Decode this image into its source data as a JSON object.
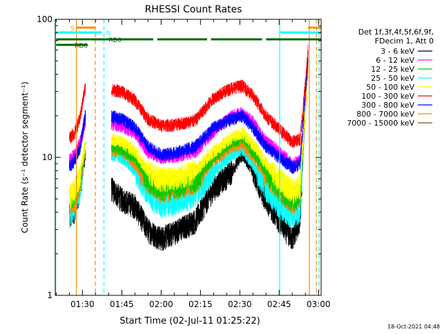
{
  "chart_data": {
    "type": "line",
    "title": "RHESSI Count Rates",
    "xlabel": "Start Time (02-Jul-11 01:25:22)",
    "ylabel": "Count Rate (s⁻¹ detector segment⁻¹)",
    "x_range_minutes": [
      -5.37,
      96.0
    ],
    "x_ticks": [
      {
        "minute": 5,
        "label": "01:30"
      },
      {
        "minute": 20,
        "label": "01:45"
      },
      {
        "minute": 35,
        "label": "02:00"
      },
      {
        "minute": 50,
        "label": "02:15"
      },
      {
        "minute": 65,
        "label": "02:30"
      },
      {
        "minute": 80,
        "label": "02:45"
      },
      {
        "minute": 95,
        "label": "03:00"
      }
    ],
    "y_scale": "log",
    "ylim": [
      1,
      100
    ],
    "y_tick_labels": [
      {
        "value": 1,
        "label": "1"
      },
      {
        "value": 10,
        "label": "10"
      },
      {
        "value": 100,
        "label": "100"
      }
    ],
    "legend": {
      "placement": "right",
      "header": [
        "Det 1f,3f,4f,5f,6f,9f,",
        "FDecim 1, Att 0"
      ]
    },
    "series": [
      {
        "name": "3 - 6 keV",
        "color": "#000000",
        "values": [
          [
            0,
            3.6
          ],
          [
            2,
            4.2
          ],
          [
            4,
            6.0
          ],
          [
            6,
            10.0
          ],
          [
            16,
            6.0
          ],
          [
            20,
            5.0
          ],
          [
            25,
            4.5
          ],
          [
            30,
            3.0
          ],
          [
            35,
            2.6
          ],
          [
            40,
            2.9
          ],
          [
            48,
            3.5
          ],
          [
            55,
            6.0
          ],
          [
            62,
            8.0
          ],
          [
            66,
            10.5
          ],
          [
            70,
            8.0
          ],
          [
            75,
            5.0
          ],
          [
            80,
            3.5
          ],
          [
            85,
            2.6
          ],
          [
            88,
            3.5
          ],
          [
            90,
            25.0
          ],
          [
            91,
            45.0
          ]
        ]
      },
      {
        "name": "6 - 12 keV",
        "color": "#ff00ff",
        "values": [
          [
            0,
            9.5
          ],
          [
            2,
            10.5
          ],
          [
            4,
            12.5
          ],
          [
            6,
            18.0
          ],
          [
            16,
            17.5
          ],
          [
            20,
            17.0
          ],
          [
            25,
            15.0
          ],
          [
            30,
            11.0
          ],
          [
            35,
            10.0
          ],
          [
            40,
            10.2
          ],
          [
            48,
            11.0
          ],
          [
            55,
            15.5
          ],
          [
            62,
            20.0
          ],
          [
            66,
            21.0
          ],
          [
            70,
            18.0
          ],
          [
            75,
            13.0
          ],
          [
            80,
            11.0
          ],
          [
            85,
            9.0
          ],
          [
            88,
            9.5
          ],
          [
            90,
            30.0
          ],
          [
            91,
            60.0
          ]
        ]
      },
      {
        "name": "12 - 25 keV",
        "color": "#00cc00",
        "values": [
          [
            0,
            5.0
          ],
          [
            2,
            5.5
          ],
          [
            4,
            7.0
          ],
          [
            6,
            12.0
          ],
          [
            16,
            12.0
          ],
          [
            20,
            11.5
          ],
          [
            25,
            10.0
          ],
          [
            30,
            7.0
          ],
          [
            35,
            6.0
          ],
          [
            40,
            6.2
          ],
          [
            48,
            7.0
          ],
          [
            55,
            10.0
          ],
          [
            62,
            13.0
          ],
          [
            66,
            14.0
          ],
          [
            70,
            11.0
          ],
          [
            75,
            8.0
          ],
          [
            80,
            6.0
          ],
          [
            85,
            5.0
          ],
          [
            88,
            5.5
          ],
          [
            90,
            25.0
          ],
          [
            91,
            50.0
          ]
        ]
      },
      {
        "name": "25 - 50 keV",
        "color": "#00ffff",
        "values": [
          [
            0,
            3.8
          ],
          [
            2,
            4.3
          ],
          [
            4,
            6.0
          ],
          [
            6,
            10.5
          ],
          [
            16,
            10.5
          ],
          [
            20,
            10.0
          ],
          [
            25,
            8.0
          ],
          [
            30,
            5.5
          ],
          [
            35,
            4.5
          ],
          [
            40,
            4.7
          ],
          [
            48,
            5.5
          ],
          [
            55,
            8.0
          ],
          [
            62,
            10.5
          ],
          [
            66,
            11.5
          ],
          [
            70,
            9.0
          ],
          [
            75,
            6.0
          ],
          [
            80,
            4.5
          ],
          [
            85,
            3.8
          ],
          [
            88,
            4.2
          ],
          [
            90,
            22.0
          ],
          [
            91,
            45.0
          ]
        ]
      },
      {
        "name": "50 - 100 keV",
        "color": "#ffff00",
        "values": [
          [
            0,
            5.2
          ],
          [
            2,
            5.8
          ],
          [
            4,
            7.5
          ],
          [
            6,
            12.5
          ],
          [
            16,
            13.5
          ],
          [
            20,
            13.0
          ],
          [
            25,
            11.0
          ],
          [
            30,
            8.0
          ],
          [
            35,
            7.0
          ],
          [
            40,
            7.1
          ],
          [
            48,
            8.0
          ],
          [
            55,
            11.0
          ],
          [
            62,
            14.0
          ],
          [
            66,
            15.0
          ],
          [
            70,
            12.5
          ],
          [
            75,
            9.0
          ],
          [
            80,
            7.0
          ],
          [
            85,
            5.8
          ],
          [
            88,
            6.2
          ],
          [
            90,
            24.0
          ],
          [
            91,
            48.0
          ]
        ]
      },
      {
        "name": "100 - 300 keV",
        "color": "#ff0000",
        "values": [
          [
            0,
            14.0
          ],
          [
            2,
            15.0
          ],
          [
            4,
            19.0
          ],
          [
            6,
            32.0
          ],
          [
            16,
            31.0
          ],
          [
            20,
            30.0
          ],
          [
            25,
            26.0
          ],
          [
            30,
            19.0
          ],
          [
            35,
            17.0
          ],
          [
            40,
            17.2
          ],
          [
            48,
            18.5
          ],
          [
            55,
            27.0
          ],
          [
            62,
            32.0
          ],
          [
            66,
            33.0
          ],
          [
            70,
            28.0
          ],
          [
            75,
            20.0
          ],
          [
            80,
            16.0
          ],
          [
            85,
            13.0
          ],
          [
            88,
            13.5
          ],
          [
            90,
            35.0
          ],
          [
            91,
            60.0
          ]
        ]
      },
      {
        "name": "300 - 800 keV",
        "color": "#0000ff",
        "values": [
          [
            0,
            8.5
          ],
          [
            2,
            9.5
          ],
          [
            4,
            11.5
          ],
          [
            6,
            20.0
          ],
          [
            16,
            20.0
          ],
          [
            20,
            19.0
          ],
          [
            25,
            16.5
          ],
          [
            30,
            12.0
          ],
          [
            35,
            10.5
          ],
          [
            40,
            10.8
          ],
          [
            48,
            12.0
          ],
          [
            55,
            16.5
          ],
          [
            62,
            19.0
          ],
          [
            66,
            20.0
          ],
          [
            70,
            16.5
          ],
          [
            75,
            12.0
          ],
          [
            80,
            10.0
          ],
          [
            85,
            8.5
          ],
          [
            88,
            9.0
          ],
          [
            90,
            30.0
          ],
          [
            91,
            50.0
          ]
        ]
      },
      {
        "name": "800 - 7000 keV",
        "color": "#ff8800",
        "values": [
          [
            0,
            4.5
          ],
          [
            2,
            5.0
          ],
          [
            4,
            6.5
          ],
          [
            6,
            11.0
          ],
          [
            16,
            11.5
          ],
          [
            20,
            11.0
          ],
          [
            25,
            9.0
          ],
          [
            30,
            6.8
          ],
          [
            35,
            5.8
          ],
          [
            40,
            6.0
          ],
          [
            48,
            6.8
          ],
          [
            55,
            9.5
          ],
          [
            62,
            12.0
          ],
          [
            66,
            12.5
          ],
          [
            70,
            10.0
          ],
          [
            75,
            7.5
          ],
          [
            80,
            6.0
          ],
          [
            85,
            4.8
          ],
          [
            88,
            5.2
          ],
          [
            90,
            22.0
          ],
          [
            91,
            42.0
          ]
        ]
      },
      {
        "name": "7000 - 15000 keV",
        "color": "#8b4513",
        "values": []
      }
    ],
    "gaps_minutes": [
      [
        6.2,
        16.0
      ]
    ],
    "events": {
      "night_bars": [
        {
          "label": "S",
          "color": "#ff8800",
          "segments": [
            [
              2.5,
              10.0
            ],
            [
              91.0,
              96.0
            ]
          ]
        },
        {
          "label": "N",
          "color": "#00ffff",
          "segments": [
            [
              -5.0,
              12.5
            ],
            [
              80.2,
              96.0
            ]
          ]
        },
        {
          "label": "RD0",
          "color": "#006600",
          "segments": [
            [
              -5.0,
              32.0
            ],
            [
              33.5,
              52.5
            ],
            [
              54.0,
              73.5
            ],
            [
              75.0,
              96.0
            ]
          ]
        },
        {
          "label": "RD6",
          "color": "#006600",
          "segments": [
            [
              -5.0,
              7.0
            ]
          ]
        }
      ],
      "vertical_lines": [
        {
          "minute": -5.2,
          "color": "#00ffff",
          "style": "solid"
        },
        {
          "minute": 2.7,
          "color": "#ff8800",
          "style": "solid"
        },
        {
          "minute": 9.9,
          "color": "#ff8800",
          "style": "dashed"
        },
        {
          "minute": 13.2,
          "color": "#00ffff",
          "style": "dashed"
        },
        {
          "minute": 80.2,
          "color": "#00ffff",
          "style": "solid"
        },
        {
          "minute": 91.5,
          "color": "#ff8800",
          "style": "solid"
        },
        {
          "minute": 94.2,
          "color": "#ff8800",
          "style": "dashed"
        },
        {
          "minute": 95.2,
          "color": "#00ffff",
          "style": "dashed"
        }
      ]
    },
    "footer": "18-Oct-2021 04:48"
  }
}
